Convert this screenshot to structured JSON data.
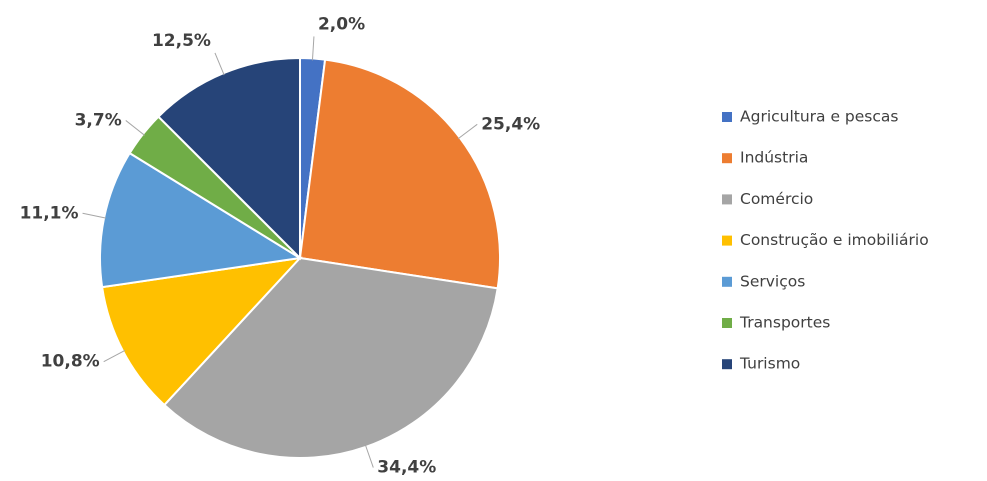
{
  "chart_data": {
    "type": "pie",
    "categories": [
      "Agricultura e pescas",
      "Indústria",
      "Comércio",
      "Construção e imobiliário",
      "Serviços",
      "Transportes",
      "Turismo"
    ],
    "values": [
      2.0,
      25.4,
      34.4,
      10.8,
      11.1,
      3.7,
      12.5
    ],
    "value_labels": [
      "2,0%",
      "25,4%",
      "34,4%",
      "10,8%",
      "11,1%",
      "3,7%",
      "12,5%"
    ],
    "colors": [
      "#4472c4",
      "#ed7d31",
      "#a5a5a5",
      "#ffc000",
      "#5b9bd5",
      "#70ad47",
      "#264478"
    ],
    "legend": "right"
  }
}
